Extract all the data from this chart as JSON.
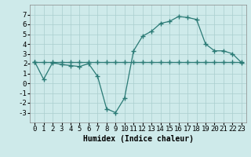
{
  "title": "",
  "xlabel": "Humidex (Indice chaleur)",
  "x_values": [
    0,
    1,
    2,
    3,
    4,
    5,
    6,
    7,
    8,
    9,
    10,
    11,
    12,
    13,
    14,
    15,
    16,
    17,
    18,
    19,
    20,
    21,
    22,
    23
  ],
  "line1_y": [
    2.2,
    0.4,
    2.1,
    1.9,
    1.8,
    1.7,
    2.0,
    0.7,
    -2.6,
    -3.0,
    -1.5,
    3.3,
    4.8,
    5.3,
    6.1,
    6.3,
    6.8,
    6.7,
    6.5,
    4.0,
    3.3,
    3.3,
    3.0,
    2.1
  ],
  "line2_y": [
    2.2,
    2.2,
    2.2,
    2.2,
    2.2,
    2.2,
    2.2,
    2.2,
    2.2,
    2.2,
    2.2,
    2.2,
    2.2,
    2.2,
    2.2,
    2.2,
    2.2,
    2.2,
    2.2,
    2.2,
    2.2,
    2.2,
    2.2,
    2.2
  ],
  "line_color": "#2a7a75",
  "bg_color": "#ceeaea",
  "grid_color": "#aacece",
  "ylim": [
    -4,
    8
  ],
  "xlim": [
    -0.5,
    23.5
  ],
  "yticks": [
    -3,
    -2,
    -1,
    0,
    1,
    2,
    3,
    4,
    5,
    6,
    7
  ],
  "xticks": [
    0,
    1,
    2,
    3,
    4,
    5,
    6,
    7,
    8,
    9,
    10,
    11,
    12,
    13,
    14,
    15,
    16,
    17,
    18,
    19,
    20,
    21,
    22,
    23
  ],
  "marker": "+",
  "xlabel_fontsize": 7,
  "tick_fontsize": 6.5,
  "linewidth": 0.9,
  "markersize": 4
}
